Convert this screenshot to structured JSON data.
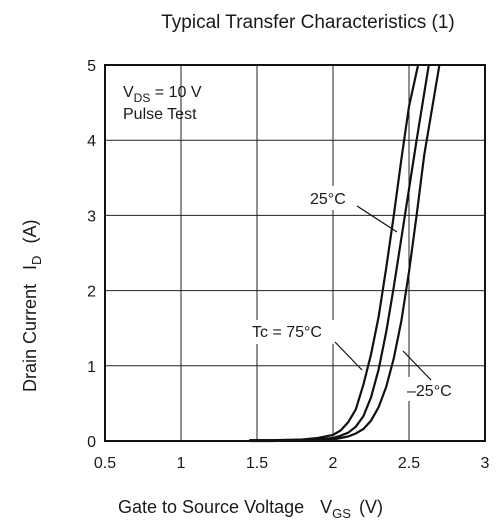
{
  "chart_data": {
    "type": "line",
    "title": "Typical Transfer Characteristics (1)",
    "xlabel": "Gate to Source Voltage",
    "xlabel_symbol": "V",
    "xlabel_sub": "GS",
    "xlabel_unit": "(V)",
    "ylabel": "Drain Current",
    "ylabel_symbol": "I",
    "ylabel_sub": "D",
    "ylabel_unit": "(A)",
    "xlim": [
      0.5,
      3
    ],
    "ylim": [
      0,
      5
    ],
    "xticks": [
      "0.5",
      "1",
      "1.5",
      "2",
      "2.5",
      "3"
    ],
    "yticks": [
      "0",
      "1",
      "2",
      "3",
      "4",
      "5"
    ],
    "grid": true,
    "conditions": {
      "line1_prefix": "V",
      "line1_sub": "DS",
      "line1_rest": " = 10 V",
      "line2": "Pulse Test"
    },
    "series": [
      {
        "name": "Tc = 75°C",
        "x": [
          1.45,
          1.6,
          1.8,
          1.9,
          2.0,
          2.05,
          2.1,
          2.15,
          2.2,
          2.25,
          2.3,
          2.35,
          2.4,
          2.45,
          2.5,
          2.56
        ],
        "y": [
          0.01,
          0.01,
          0.02,
          0.04,
          0.08,
          0.14,
          0.25,
          0.42,
          0.75,
          1.15,
          1.65,
          2.3,
          3.0,
          3.75,
          4.45,
          5.0
        ]
      },
      {
        "name": "25°C",
        "x": [
          1.45,
          1.6,
          1.8,
          1.9,
          2.0,
          2.05,
          2.1,
          2.15,
          2.2,
          2.25,
          2.3,
          2.35,
          2.4,
          2.45,
          2.5,
          2.55,
          2.63
        ],
        "y": [
          0.01,
          0.01,
          0.01,
          0.02,
          0.04,
          0.07,
          0.11,
          0.19,
          0.33,
          0.58,
          0.95,
          1.45,
          2.05,
          2.7,
          3.35,
          4.0,
          5.0
        ]
      },
      {
        "name": "-25°C",
        "x": [
          1.45,
          1.6,
          1.8,
          1.9,
          2.0,
          2.05,
          2.1,
          2.15,
          2.2,
          2.25,
          2.3,
          2.35,
          2.4,
          2.45,
          2.5,
          2.55,
          2.6,
          2.7
        ],
        "y": [
          0.0,
          0.0,
          0.01,
          0.01,
          0.02,
          0.04,
          0.06,
          0.1,
          0.16,
          0.27,
          0.45,
          0.72,
          1.1,
          1.6,
          2.25,
          3.0,
          3.8,
          5.0
        ]
      }
    ],
    "annotations": [
      {
        "text": "25°C",
        "series": 1
      },
      {
        "text": "Tc = 75°C",
        "series": 0
      },
      {
        "text": "–25°C",
        "series": 2
      }
    ]
  }
}
